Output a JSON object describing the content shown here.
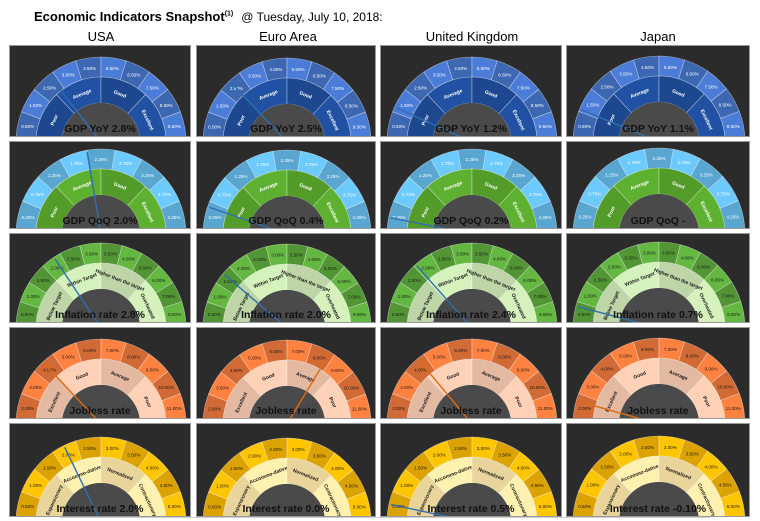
{
  "header": {
    "title": "Economic Indicators Snapshot",
    "footnote_mark": "(1)",
    "date": "@ Tuesday, July 10, 2018:"
  },
  "countries": [
    "USA",
    "Euro Area",
    "United Kingdom",
    "Japan"
  ],
  "colors": {
    "panel_bg": "#2b2b2b",
    "blue_outer": "#4472c4",
    "blue_inner": "#1f4e9c",
    "green_outer": "#63b8e8",
    "green_inner": "#5aaa2e",
    "green2_outer": "#5ba63a",
    "green2_inner": "#cde8b5",
    "orange_outer": "#e8763a",
    "orange_inner": "#f7c9b0",
    "yellow_outer": "#f4b400",
    "yellow_inner": "#fde8a8",
    "needle": "#2f6fb0"
  },
  "chart_data": [
    {
      "type": "gauge",
      "indicator": "GDP YoY",
      "scheme": "blue",
      "tick_labels": [
        "0.50%",
        "1.50%",
        "2.50%",
        "3.50%",
        "4.50%",
        "5.50%",
        "6.50%",
        "7.50%",
        "8.50%",
        "9.50%"
      ],
      "ranges": [
        "Poor",
        "Average",
        "Good",
        "Excellent"
      ],
      "panels": [
        {
          "label": "GDP YoY 2.8%",
          "value": 2.8
        },
        {
          "label": "GDP YoY 2.5%",
          "value": 2.5
        },
        {
          "label": "GDP YoY 1.2%",
          "value": 1.2
        },
        {
          "label": "GDP YoY 1.1%",
          "value": 1.1
        }
      ]
    },
    {
      "type": "gauge",
      "indicator": "GDP QoQ",
      "scheme": "green",
      "tick_labels": [
        "0.25%",
        "0.75%",
        "1.25%",
        "1.75%",
        "2.25%",
        "2.75%",
        "3.25%",
        "3.75%",
        "4.25%"
      ],
      "ranges": [
        "Poor",
        "Average",
        "Good",
        "Excellent"
      ],
      "panels": [
        {
          "label": "GDP QoQ 2.0%",
          "value": 2.0
        },
        {
          "label": "GDP QoQ 0.4%",
          "value": 0.4
        },
        {
          "label": "GDP QoQ 0.2%",
          "value": 0.2
        },
        {
          "label": "GDP QoQ -",
          "value": null
        }
      ],
      "japan_extra_ticks": [
        "0.25%",
        "-0.25%",
        "-0.75%"
      ]
    },
    {
      "type": "gauge",
      "indicator": "Inflation rate",
      "scheme": "green2",
      "tick_labels": [
        "0.50%",
        "1.00%",
        "1.50%",
        "2.00%",
        "2.50%",
        "3.00%",
        "3.50%",
        "4.00%",
        "5.00%",
        "6.00%",
        "7.00%",
        "8.50%"
      ],
      "ranges": [
        "Below Target",
        "Within Target",
        "Higher than the target",
        "Overheated"
      ],
      "panels": [
        {
          "label": "Inflation rate 2.8%",
          "value": 2.8
        },
        {
          "label": "Inflation rate 2.0%",
          "value": 2.0
        },
        {
          "label": "Inflation rate 2.4%",
          "value": 2.4
        },
        {
          "label": "Inflation rate 0.7%",
          "value": 0.7
        }
      ]
    },
    {
      "type": "gauge",
      "indicator": "Jobless rate",
      "scheme": "orange",
      "tick_labels": [
        "2.00%",
        "3.00%",
        "4.00%",
        "5.00%",
        "6.00%",
        "7.00%",
        "8.00%",
        "9.00%",
        "10.00%",
        "11.00%"
      ],
      "ranges": [
        "Excellent",
        "Good",
        "Average",
        "Poor"
      ],
      "panels": [
        {
          "label": "Jobless rate",
          "value": 4.0
        },
        {
          "label": "Jobless rate",
          "value": 8.3
        },
        {
          "label": "Jobless rate",
          "value": 4.2
        },
        {
          "label": "Jobless rate",
          "value": 2.2
        }
      ]
    },
    {
      "type": "gauge",
      "indicator": "Interest rate",
      "scheme": "yellow",
      "tick_labels": [
        "0.50%",
        "1.00%",
        "1.50%",
        "2.00%",
        "2.50%",
        "3.00%",
        "3.50%",
        "4.00%",
        "4.50%",
        "5.00%"
      ],
      "ranges": [
        "Expansionary",
        "Accommo-dative",
        "Normalized",
        "Contractionary"
      ],
      "panels": [
        {
          "label": "Interest rate 2.0%",
          "value": 2.0
        },
        {
          "label": "Interest rate 0.0%",
          "value": 0.0
        },
        {
          "label": "Interest rate 0.5%",
          "value": 0.5
        },
        {
          "label": "Interest rate -0.10%",
          "value": -0.1
        }
      ]
    }
  ]
}
